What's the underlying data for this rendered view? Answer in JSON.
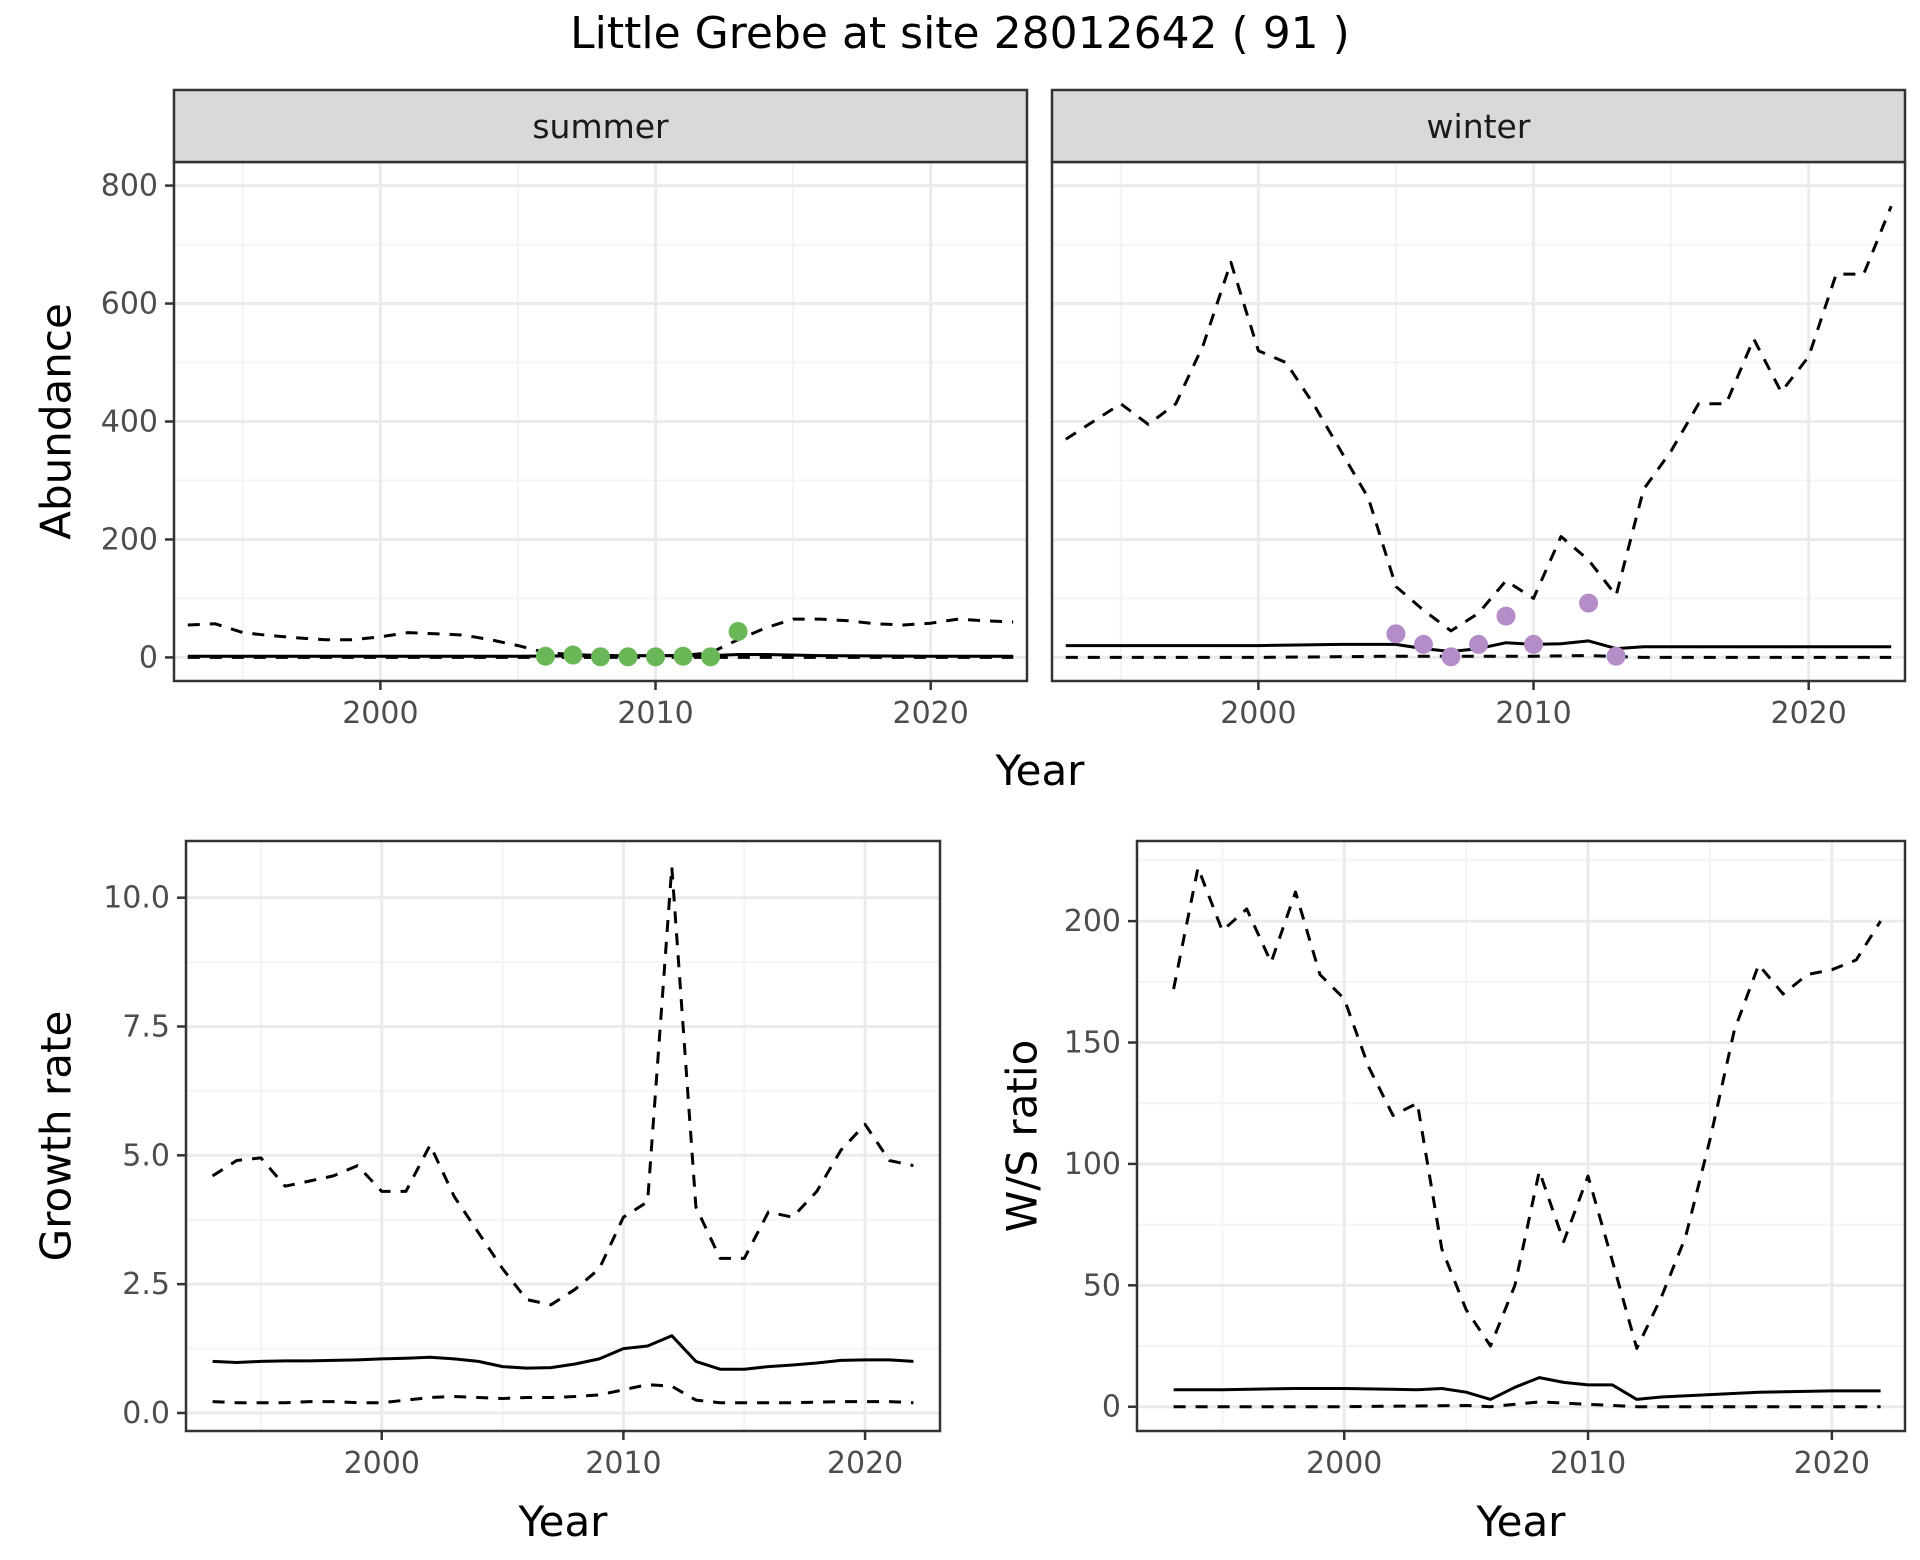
{
  "title": "Little Grebe at site 28012642 ( 91 )",
  "colors": {
    "summer_points": "#6ab758",
    "winter_points": "#b48cc8",
    "line": "#000000",
    "grid_major": "#ebebeb",
    "grid_minor": "#f4f4f4",
    "panel_border": "#333333",
    "strip_fill": "#d9d9d9"
  },
  "chart_data": [
    {
      "type": "line",
      "facet": "summer",
      "xlabel": "Year",
      "ylabel": "Abundance",
      "xlim": [
        1992.5,
        2023.5
      ],
      "ylim": [
        -40,
        840
      ],
      "xticks": [
        2000,
        2010,
        2020
      ],
      "yticks": [
        0,
        200,
        400,
        600,
        800
      ],
      "grid": true,
      "series": [
        {
          "style": "dashed",
          "x": [
            1993,
            1994,
            1995,
            1996,
            1997,
            1998,
            1999,
            2000,
            2001,
            2002,
            2003,
            2004,
            2005,
            2006,
            2007,
            2008,
            2009,
            2010,
            2011,
            2012,
            2013,
            2014,
            2015,
            2016,
            2017,
            2018,
            2019,
            2020,
            2021,
            2022,
            2023
          ],
          "y": [
            55,
            57,
            42,
            37,
            33,
            30,
            30,
            35,
            42,
            40,
            38,
            30,
            20,
            8,
            5,
            3,
            3,
            3,
            3,
            8,
            30,
            50,
            65,
            65,
            62,
            57,
            55,
            58,
            65,
            62,
            60
          ]
        },
        {
          "style": "solid",
          "x": [
            1993,
            1995,
            2000,
            2005,
            2008,
            2010,
            2012,
            2013,
            2014,
            2016,
            2020,
            2023
          ],
          "y": [
            2,
            2,
            2,
            2,
            3,
            3,
            3,
            5,
            5,
            3,
            2,
            2
          ]
        },
        {
          "style": "dashed",
          "x": [
            1993,
            2000,
            2010,
            2023
          ],
          "y": [
            0,
            0,
            0,
            0
          ]
        },
        {
          "style": "points",
          "x": [
            2006,
            2007,
            2008,
            2009,
            2010,
            2011,
            2012,
            2013
          ],
          "y": [
            2,
            4,
            1,
            1,
            1,
            2,
            1,
            44
          ]
        }
      ]
    },
    {
      "type": "line",
      "facet": "winter",
      "xlabel": "Year",
      "ylabel": "",
      "xlim": [
        1992.5,
        2023.5
      ],
      "ylim": [
        -40,
        840
      ],
      "xticks": [
        2000,
        2010,
        2020
      ],
      "yticks": [
        0,
        200,
        400,
        600,
        800
      ],
      "grid": true,
      "series": [
        {
          "style": "dashed",
          "x": [
            1993,
            1994,
            1995,
            1996,
            1997,
            1998,
            1999,
            2000,
            2001,
            2002,
            2003,
            2004,
            2005,
            2006,
            2007,
            2008,
            2009,
            2010,
            2011,
            2012,
            2013,
            2014,
            2015,
            2016,
            2017,
            2018,
            2019,
            2020,
            2021,
            2022,
            2023
          ],
          "y": [
            370,
            400,
            430,
            395,
            430,
            530,
            670,
            520,
            500,
            430,
            350,
            270,
            120,
            80,
            45,
            75,
            130,
            100,
            205,
            165,
            105,
            285,
            350,
            430,
            430,
            540,
            450,
            510,
            650,
            650,
            765
          ]
        },
        {
          "style": "solid",
          "x": [
            1993,
            1995,
            2000,
            2003,
            2005,
            2006,
            2007,
            2008,
            2009,
            2010,
            2011,
            2012,
            2013,
            2014,
            2016,
            2020,
            2023
          ],
          "y": [
            20,
            20,
            20,
            22,
            22,
            15,
            10,
            15,
            25,
            22,
            23,
            28,
            15,
            18,
            18,
            18,
            18
          ]
        },
        {
          "style": "dashed",
          "x": [
            1993,
            2000,
            2005,
            2008,
            2010,
            2012,
            2014,
            2023
          ],
          "y": [
            0,
            0,
            2,
            2,
            2,
            3,
            0,
            0
          ]
        },
        {
          "style": "points",
          "x": [
            2005,
            2006,
            2007,
            2008,
            2009,
            2010,
            2012,
            2013
          ],
          "y": [
            40,
            22,
            1,
            22,
            70,
            22,
            92,
            2
          ]
        }
      ]
    },
    {
      "type": "line",
      "xlabel": "Year",
      "ylabel": "Growth rate",
      "xlim": [
        1991.9,
        2023.1
      ],
      "ylim": [
        -0.35,
        11.1
      ],
      "xticks": [
        2000,
        2010,
        2020
      ],
      "yticks": [
        0.0,
        2.5,
        5.0,
        7.5,
        10.0
      ],
      "ytick_labels": [
        "0.0",
        "2.5",
        "5.0",
        "7.5",
        "10.0"
      ],
      "grid": true,
      "series": [
        {
          "style": "dashed",
          "x": [
            1993,
            1994,
            1995,
            1996,
            1997,
            1998,
            1999,
            2000,
            2001,
            2002,
            2003,
            2004,
            2005,
            2006,
            2007,
            2008,
            2009,
            2010,
            2011,
            2012,
            2013,
            2014,
            2015,
            2016,
            2017,
            2018,
            2019,
            2020,
            2021,
            2022
          ],
          "y": [
            4.6,
            4.9,
            4.95,
            4.4,
            4.5,
            4.6,
            4.8,
            4.3,
            4.3,
            5.2,
            4.2,
            3.5,
            2.8,
            2.2,
            2.1,
            2.4,
            2.8,
            3.8,
            4.1,
            10.6,
            4.0,
            3.0,
            3.0,
            3.9,
            3.8,
            4.3,
            5.1,
            5.6,
            4.9,
            4.8
          ]
        },
        {
          "style": "solid",
          "x": [
            1993,
            1994,
            1995,
            1996,
            1997,
            1998,
            1999,
            2000,
            2001,
            2002,
            2003,
            2004,
            2005,
            2006,
            2007,
            2008,
            2009,
            2010,
            2011,
            2012,
            2013,
            2014,
            2015,
            2016,
            2017,
            2018,
            2019,
            2020,
            2021,
            2022
          ],
          "y": [
            1.0,
            0.98,
            1.0,
            1.01,
            1.01,
            1.02,
            1.03,
            1.05,
            1.06,
            1.08,
            1.05,
            1.0,
            0.9,
            0.87,
            0.88,
            0.95,
            1.05,
            1.25,
            1.3,
            1.5,
            1.0,
            0.85,
            0.85,
            0.9,
            0.93,
            0.97,
            1.02,
            1.03,
            1.03,
            1.0
          ]
        },
        {
          "style": "dashed",
          "x": [
            1993,
            1994,
            1995,
            1996,
            1997,
            1998,
            1999,
            2000,
            2001,
            2002,
            2003,
            2004,
            2005,
            2006,
            2007,
            2008,
            2009,
            2010,
            2011,
            2012,
            2013,
            2014,
            2015,
            2016,
            2017,
            2018,
            2019,
            2020,
            2021,
            2022
          ],
          "y": [
            0.22,
            0.2,
            0.2,
            0.2,
            0.22,
            0.22,
            0.2,
            0.2,
            0.25,
            0.3,
            0.32,
            0.3,
            0.28,
            0.3,
            0.3,
            0.32,
            0.35,
            0.45,
            0.55,
            0.52,
            0.25,
            0.2,
            0.2,
            0.2,
            0.2,
            0.21,
            0.22,
            0.22,
            0.22,
            0.2
          ]
        }
      ]
    },
    {
      "type": "line",
      "xlabel": "Year",
      "ylabel": "W/S ratio",
      "xlim": [
        1991.5,
        2023.0
      ],
      "ylim": [
        -10,
        233
      ],
      "xticks": [
        2000,
        2010,
        2020
      ],
      "yticks": [
        0,
        50,
        100,
        150,
        200
      ],
      "grid": true,
      "series": [
        {
          "style": "dashed",
          "x": [
            1993,
            1994,
            1995,
            1996,
            1997,
            1998,
            1999,
            2000,
            2001,
            2002,
            2003,
            2004,
            2005,
            2006,
            2007,
            2008,
            2009,
            2010,
            2011,
            2012,
            2013,
            2014,
            2015,
            2016,
            2017,
            2018,
            2019,
            2020,
            2021,
            2022
          ],
          "y": [
            172,
            222,
            196,
            205,
            183,
            212,
            178,
            168,
            140,
            120,
            125,
            65,
            40,
            25,
            50,
            97,
            68,
            95,
            60,
            24,
            45,
            70,
            110,
            155,
            182,
            170,
            178,
            180,
            184,
            200
          ]
        },
        {
          "style": "solid",
          "x": [
            1993,
            1995,
            1998,
            2000,
            2003,
            2004,
            2005,
            2006,
            2007,
            2008,
            2009,
            2010,
            2011,
            2012,
            2013,
            2015,
            2017,
            2020,
            2022
          ],
          "y": [
            7,
            7,
            7.5,
            7.5,
            7,
            7.5,
            6,
            3,
            8,
            12,
            10,
            9,
            9,
            3,
            4,
            5,
            6,
            6.5,
            6.5
          ]
        },
        {
          "style": "dashed",
          "x": [
            1993,
            2000,
            2005,
            2006,
            2008,
            2010,
            2012,
            2015,
            2022
          ],
          "y": [
            0,
            0,
            0.5,
            0,
            2,
            1,
            0,
            0,
            0
          ]
        }
      ]
    }
  ]
}
